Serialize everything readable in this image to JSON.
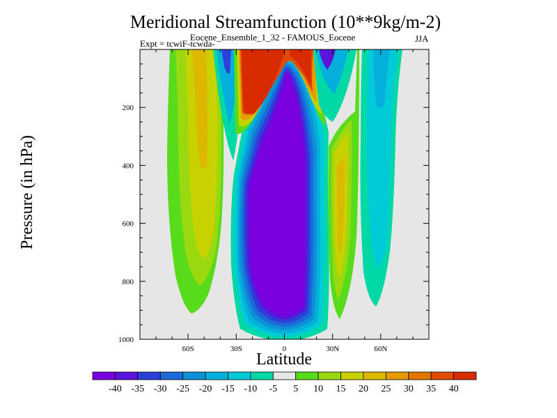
{
  "chart_data": {
    "type": "contour",
    "title": "Meridional Streamfunction (10**9kg/m-2)",
    "subtitle": "Eocene_Ensemble_1_32 - FAMOUS_Eocene",
    "experiment_label": "Expt = tcwiF-tcwda-",
    "season": "JJA",
    "xlabel": "Latitude",
    "ylabel": "Pressure (in hPa)",
    "xlim": [
      -90,
      90
    ],
    "ylim": [
      1000,
      0
    ],
    "x_ticks": [
      {
        "value": -60,
        "label": "60S"
      },
      {
        "value": -30,
        "label": "30S"
      },
      {
        "value": 0,
        "label": "0"
      },
      {
        "value": 30,
        "label": "30N"
      },
      {
        "value": 60,
        "label": "60N"
      }
    ],
    "y_ticks": [
      {
        "value": 200,
        "label": "200"
      },
      {
        "value": 400,
        "label": "400"
      },
      {
        "value": 600,
        "label": "600"
      },
      {
        "value": 800,
        "label": "800"
      },
      {
        "value": 1000,
        "label": "1000"
      }
    ],
    "missing_color": "#e6e6e6",
    "colorbar": {
      "colors": [
        "#7a00e0",
        "#5a14dc",
        "#2d3fd9",
        "#1a6ad9",
        "#0d90d6",
        "#04b0db",
        "#00cbd7",
        "#00d9a6",
        "#e6e6e6",
        "#58db1a",
        "#9ad80f",
        "#c8d200",
        "#dcb900",
        "#e59a00",
        "#e37600",
        "#e04b00",
        "#d92b00"
      ],
      "labels": [
        "-40",
        "-35",
        "-30",
        "-25",
        "-20",
        "-15",
        "-10",
        "-5",
        "5",
        "10",
        "15",
        "20",
        "25",
        "30",
        "35",
        "40"
      ]
    },
    "regions": [
      {
        "name": "sh-extratropical-cell",
        "approx_value": 20,
        "lat_range": [
          -75,
          -40
        ],
        "p_range": [
          0,
          910
        ]
      },
      {
        "name": "sh-midlat-negative-cell",
        "approx_value": -15,
        "lat_range": [
          -42,
          -28
        ],
        "p_range": [
          0,
          320
        ]
      },
      {
        "name": "upper-tropical-positive-cell",
        "approx_value": 40,
        "lat_range": [
          -28,
          14
        ],
        "p_range": [
          0,
          240
        ]
      },
      {
        "name": "hadley-cell-negative",
        "approx_value": -40,
        "lat_range": [
          -32,
          22
        ],
        "p_range": [
          40,
          990
        ]
      },
      {
        "name": "nh-upper-negative-cell",
        "approx_value": -35,
        "lat_range": [
          15,
          40
        ],
        "p_range": [
          0,
          60
        ]
      },
      {
        "name": "nh-ferrel-positive-cell",
        "approx_value": 20,
        "lat_range": [
          24,
          43
        ],
        "p_range": [
          150,
          935
        ]
      },
      {
        "name": "nh-polar-negative-cell",
        "approx_value": -10,
        "lat_range": [
          47,
          70
        ],
        "p_range": [
          0,
          890
        ]
      }
    ]
  }
}
